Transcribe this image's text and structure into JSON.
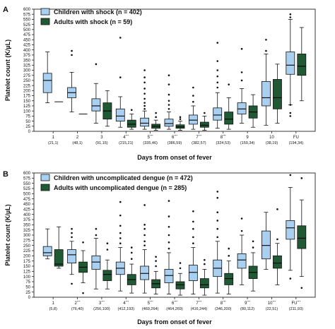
{
  "chart_data": [
    {
      "panel_label": "A",
      "type": "boxplot",
      "ylabel": "Platelet count (K/µL)",
      "xlabel": "Days from onset of fever",
      "ylim": [
        0,
        600
      ],
      "yticks": [
        0,
        25,
        50,
        75,
        100,
        125,
        150,
        175,
        200,
        225,
        250,
        275,
        300,
        325,
        350,
        375,
        400,
        425,
        450,
        475,
        500,
        525,
        550,
        575,
        600
      ],
      "legend_position": "top-left",
      "categories": [
        "1",
        "2",
        "3",
        "4",
        "5",
        "6",
        "7",
        "8",
        "9",
        "10",
        "FU"
      ],
      "category_marks": [
        "",
        "",
        "",
        "***",
        "***",
        "***",
        "***",
        "***",
        "",
        "",
        ""
      ],
      "category_counts": [
        "(21,1)",
        "(48,1)",
        "(91,15)",
        "(215,21)",
        "(335,46)",
        "(386,59)",
        "(382,57)",
        "(324,53)",
        "(159,34)",
        "(38,19)",
        "(194,34)"
      ],
      "series": [
        {
          "name": "Children with shock (n = 402)",
          "color": "#a9d0f0",
          "boxes": [
            {
              "whisker_low": 140,
              "q1": 190,
              "median": 250,
              "q3": 285,
              "whisker_high": 390,
              "outliers": []
            },
            {
              "whisker_low": 95,
              "q1": 165,
              "median": 190,
              "q3": 215,
              "whisker_high": 290,
              "outliers": [
                375,
                395
              ]
            },
            {
              "whisker_low": 40,
              "q1": 100,
              "median": 125,
              "q3": 160,
              "whisker_high": 235,
              "outliers": [
                330
              ]
            },
            {
              "whisker_low": 20,
              "q1": 50,
              "median": 75,
              "q3": 110,
              "whisker_high": 170,
              "outliers": [
                265,
                460
              ]
            },
            {
              "whisker_low": 10,
              "q1": 25,
              "median": 40,
              "q3": 65,
              "whisker_high": 100,
              "outliers": [
                110,
                125,
                140,
                160,
                185,
                210,
                240,
                265,
                300
              ]
            },
            {
              "whisker_low": 10,
              "q1": 25,
              "median": 38,
              "q3": 60,
              "whisker_high": 95,
              "outliers": [
                110,
                130,
                150,
                180,
                230,
                275
              ]
            },
            {
              "whisker_low": 10,
              "q1": 35,
              "median": 55,
              "q3": 80,
              "whisker_high": 125,
              "outliers": [
                145,
                175,
                215
              ]
            },
            {
              "whisker_low": 15,
              "q1": 55,
              "median": 80,
              "q3": 115,
              "whisker_high": 190,
              "outliers": [
                215,
                240,
                270,
                300,
                345,
                435
              ]
            },
            {
              "whisker_low": 40,
              "q1": 85,
              "median": 110,
              "q3": 140,
              "whisker_high": 210,
              "outliers": [
                250,
                290,
                405
              ]
            },
            {
              "whisker_low": 30,
              "q1": 125,
              "median": 165,
              "q3": 245,
              "whisker_high": 380,
              "outliers": [
                395,
                450
              ]
            },
            {
              "whisker_low": 130,
              "q1": 280,
              "median": 325,
              "q3": 390,
              "whisker_high": 550,
              "outliers": [
                75,
                90,
                130,
                560,
                575
              ]
            }
          ]
        },
        {
          "name": "Adults with shock (n = 59)",
          "color": "#1f5a34",
          "boxes": [
            {
              "single": 145
            },
            {
              "single": 85
            },
            {
              "whisker_low": 25,
              "q1": 60,
              "median": 100,
              "q3": 140,
              "whisker_high": 200,
              "outliers": []
            },
            {
              "whisker_low": 10,
              "q1": 20,
              "median": 35,
              "q3": 55,
              "whisker_high": 85,
              "outliers": [
                105
              ]
            },
            {
              "whisker_low": 5,
              "q1": 15,
              "median": 25,
              "q3": 35,
              "whisker_high": 55,
              "outliers": [
                70,
                90
              ]
            },
            {
              "whisker_low": 5,
              "q1": 15,
              "median": 22,
              "q3": 32,
              "whisker_high": 50,
              "outliers": [
                60,
                70
              ]
            },
            {
              "whisker_low": 5,
              "q1": 20,
              "median": 30,
              "q3": 45,
              "whisker_high": 75,
              "outliers": [
                90
              ]
            },
            {
              "whisker_low": 10,
              "q1": 35,
              "median": 60,
              "q3": 95,
              "whisker_high": 165,
              "outliers": [
                230
              ]
            },
            {
              "whisker_low": 20,
              "q1": 65,
              "median": 95,
              "q3": 125,
              "whisker_high": 180,
              "outliers": []
            },
            {
              "whisker_low": 40,
              "q1": 110,
              "median": 165,
              "q3": 255,
              "whisker_high": 330,
              "outliers": []
            },
            {
              "whisker_low": 150,
              "q1": 275,
              "median": 320,
              "q3": 380,
              "whisker_high": 510,
              "outliers": []
            }
          ]
        }
      ]
    },
    {
      "panel_label": "B",
      "type": "boxplot",
      "ylabel": "Platelet count (K/µL)",
      "xlabel": "Days from onset of fever",
      "ylim": [
        0,
        600
      ],
      "yticks": [
        0,
        25,
        50,
        75,
        100,
        125,
        150,
        175,
        200,
        225,
        250,
        275,
        300,
        325,
        350,
        375,
        400,
        425,
        450,
        475,
        500,
        525,
        550,
        575,
        600
      ],
      "legend_position": "top-left",
      "categories": [
        "1",
        "2",
        "3",
        "4",
        "5",
        "6",
        "7",
        "8",
        "9",
        "10",
        "FU"
      ],
      "category_marks": [
        "",
        "***",
        "***",
        "***",
        "***",
        "***",
        "***",
        "***",
        "***",
        "***",
        "***"
      ],
      "category_counts": [
        "(5,8)",
        "(76,40)",
        "(256,100)",
        "(412,193)",
        "(469,264)",
        "(464,269)",
        "(416,244)",
        "(346,200)",
        "(80,112)",
        "(22,51)",
        "(211,93)"
      ],
      "series": [
        {
          "name": "Children with uncomplicated dengue (n = 472)",
          "color": "#a9d0f0",
          "boxes": [
            {
              "whisker_low": 185,
              "q1": 200,
              "median": 215,
              "q3": 245,
              "whisker_high": 330,
              "outliers": []
            },
            {
              "whisker_low": 110,
              "q1": 165,
              "median": 205,
              "q3": 230,
              "whisker_high": 270,
              "outliers": [
                65,
                290,
                310,
                330
              ]
            },
            {
              "whisker_low": 40,
              "q1": 135,
              "median": 170,
              "q3": 200,
              "whisker_high": 285,
              "outliers": [
                300,
                330
              ]
            },
            {
              "whisker_low": 30,
              "q1": 110,
              "median": 140,
              "q3": 170,
              "whisker_high": 240,
              "outliers": [
                260,
                285,
                310,
                345,
                395,
                460
              ]
            },
            {
              "whisker_low": 20,
              "q1": 85,
              "median": 115,
              "q3": 150,
              "whisker_high": 230,
              "outliers": [
                250,
                270,
                300,
                330,
                350,
                445
              ]
            },
            {
              "whisker_low": 15,
              "q1": 70,
              "median": 105,
              "q3": 135,
              "whisker_high": 215,
              "outliers": [
                235,
                265,
                300,
                340,
                390,
                465
              ]
            },
            {
              "whisker_low": 15,
              "q1": 80,
              "median": 120,
              "q3": 155,
              "whisker_high": 240,
              "outliers": [
                260,
                290,
                330,
                365,
                415
              ]
            },
            {
              "whisker_low": 20,
              "q1": 100,
              "median": 140,
              "q3": 180,
              "whisker_high": 270,
              "outliers": [
                290,
                330,
                370,
                410,
                480,
                510
              ]
            },
            {
              "whisker_low": 60,
              "q1": 140,
              "median": 180,
              "q3": 210,
              "whisker_high": 300,
              "outliers": [
                320,
                380
              ]
            },
            {
              "whisker_low": 135,
              "q1": 185,
              "median": 250,
              "q3": 320,
              "whisker_high": 410,
              "outliers": []
            },
            {
              "whisker_low": 130,
              "q1": 280,
              "median": 335,
              "q3": 370,
              "whisker_high": 530,
              "outliers": [
                90,
                590
              ]
            }
          ]
        },
        {
          "name": "Adults with uncomplicated dengue (n = 285)",
          "color": "#1f5a34",
          "boxes": [
            {
              "whisker_low": 140,
              "q1": 150,
              "median": 160,
              "q3": 230,
              "whisker_high": 340,
              "outliers": []
            },
            {
              "whisker_low": 70,
              "q1": 120,
              "median": 145,
              "q3": 170,
              "whisker_high": 225,
              "outliers": [
                20,
                265
              ]
            },
            {
              "whisker_low": 40,
              "q1": 80,
              "median": 110,
              "q3": 130,
              "whisker_high": 180,
              "outliers": [
                230,
                260
              ]
            },
            {
              "whisker_low": 20,
              "q1": 60,
              "median": 85,
              "q3": 110,
              "whisker_high": 160,
              "outliers": [
                185,
                215,
                240
              ]
            },
            {
              "whisker_low": 15,
              "q1": 45,
              "median": 65,
              "q3": 85,
              "whisker_high": 125,
              "outliers": [
                150,
                175,
                195
              ]
            },
            {
              "whisker_low": 10,
              "q1": 40,
              "median": 60,
              "q3": 75,
              "whisker_high": 115,
              "outliers": [
                140,
                165
              ]
            },
            {
              "whisker_low": 10,
              "q1": 45,
              "median": 60,
              "q3": 90,
              "whisker_high": 135,
              "outliers": [
                160,
                180
              ]
            },
            {
              "whisker_low": 15,
              "q1": 60,
              "median": 90,
              "q3": 115,
              "whisker_high": 175,
              "outliers": [
                200,
                235
              ]
            },
            {
              "whisker_low": 30,
              "q1": 90,
              "median": 120,
              "q3": 150,
              "whisker_high": 215,
              "outliers": [
                240,
                270
              ]
            },
            {
              "whisker_low": 60,
              "q1": 140,
              "median": 165,
              "q3": 200,
              "whisker_high": 260,
              "outliers": [
                280,
                425
              ]
            },
            {
              "whisker_low": 100,
              "q1": 235,
              "median": 285,
              "q3": 345,
              "whisker_high": 470,
              "outliers": [
                45,
                575
              ]
            }
          ]
        }
      ]
    }
  ]
}
